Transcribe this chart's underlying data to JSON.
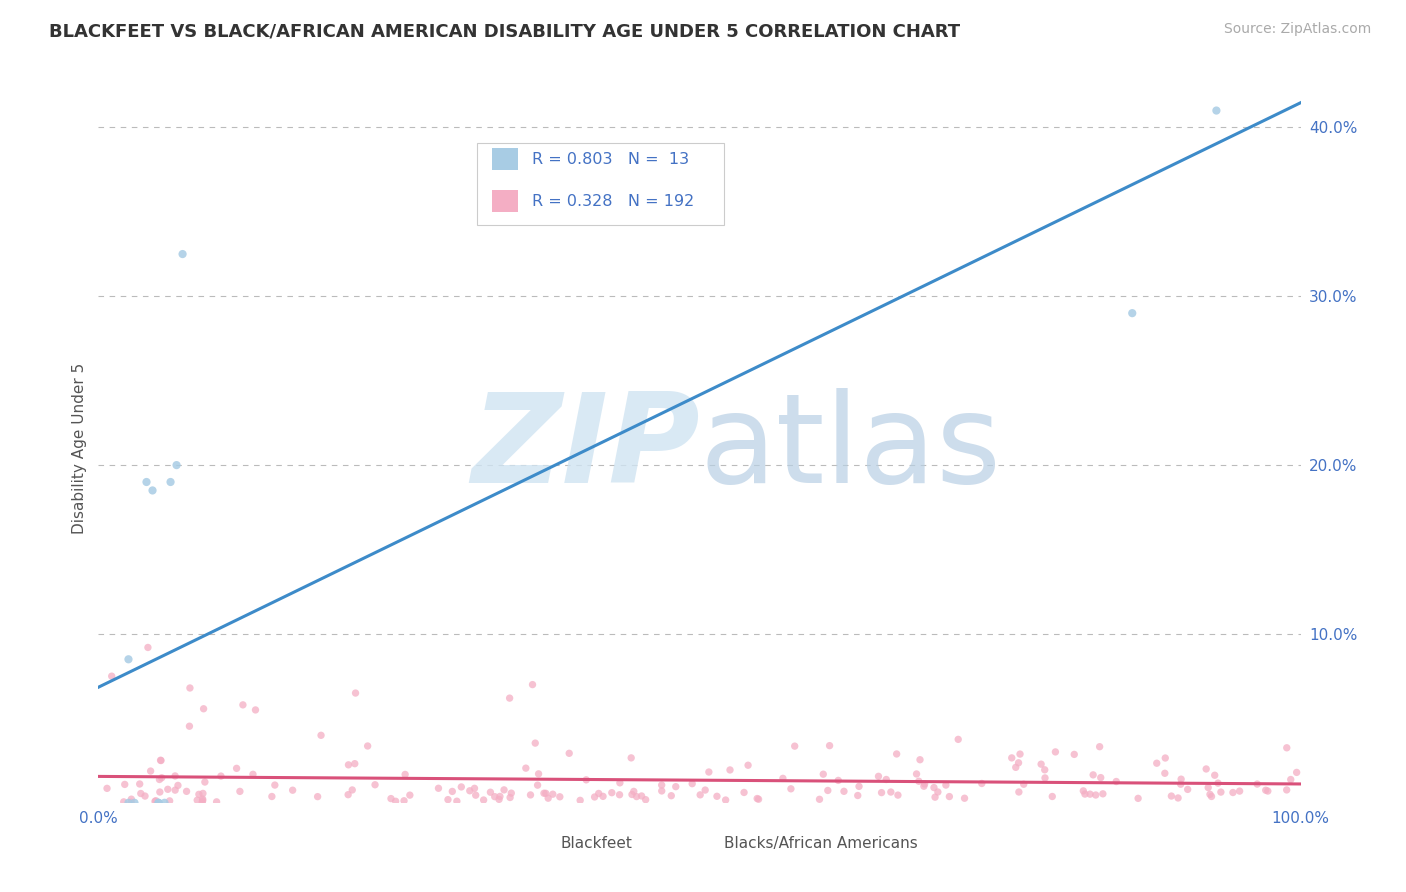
{
  "title": "BLACKFEET VS BLACK/AFRICAN AMERICAN DISABILITY AGE UNDER 5 CORRELATION CHART",
  "source": "Source: ZipAtlas.com",
  "ylabel": "Disability Age Under 5",
  "xlim": [
    0,
    1.0
  ],
  "ylim": [
    0,
    0.42
  ],
  "ytick_vals": [
    0.0,
    0.1,
    0.2,
    0.3,
    0.4
  ],
  "ytick_labels": [
    "",
    "10.0%",
    "20.0%",
    "30.0%",
    "40.0%"
  ],
  "title_fontsize": 13,
  "source_fontsize": 10,
  "color_blue": "#a8cce4",
  "color_blue_line": "#3d8bc9",
  "color_pink": "#f4aec4",
  "color_pink_line": "#d9517a",
  "color_text_blue": "#4472c4",
  "background": "#ffffff",
  "grid_color": "#bbbbbb",
  "blackfeet_x": [
    0.025,
    0.025,
    0.03,
    0.04,
    0.045,
    0.05,
    0.05,
    0.055,
    0.06,
    0.065,
    0.07,
    0.93,
    0.86
  ],
  "blackfeet_y": [
    0.085,
    0.0,
    0.0,
    0.19,
    0.185,
    0.0,
    0.0,
    0.0,
    0.19,
    0.2,
    0.325,
    0.41,
    0.29
  ]
}
